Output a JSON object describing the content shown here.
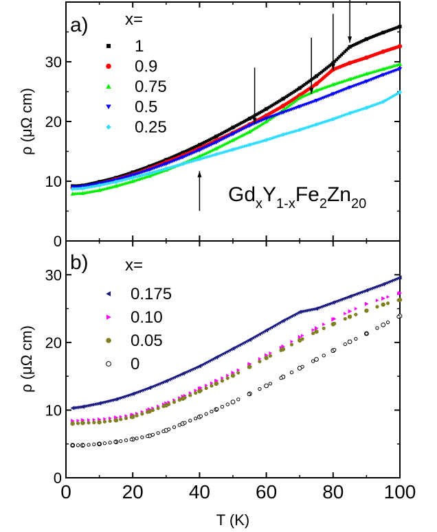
{
  "chart_data": [
    {
      "type": "scatter",
      "panel_label": "a)",
      "annotation": {
        "base": [
          "Gd",
          "Y",
          "Fe",
          "Zn"
        ],
        "subs": [
          "x",
          "1-x",
          "2",
          "20"
        ]
      },
      "xlabel": "",
      "ylabel": "ρ (μΩ cm)",
      "xlim": [
        0,
        100
      ],
      "ylim": [
        0,
        40
      ],
      "yticks": [
        0,
        10,
        20,
        30
      ],
      "grid": false,
      "legend": {
        "title": "x=",
        "position": "top-left"
      },
      "series": [
        {
          "name": "1",
          "color": "#000000",
          "marker": "square",
          "x": [
            2,
            5,
            10,
            15,
            20,
            25,
            30,
            35,
            40,
            45,
            50,
            55,
            60,
            65,
            70,
            75,
            80,
            85,
            90,
            95,
            100
          ],
          "y": [
            9.2,
            9.3,
            9.9,
            10.6,
            11.5,
            12.5,
            13.6,
            14.8,
            16.1,
            17.5,
            19.0,
            20.5,
            22.1,
            23.8,
            25.6,
            27.6,
            29.8,
            32.5,
            33.8,
            34.9,
            35.9
          ]
        },
        {
          "name": "0.9",
          "color": "#ff0000",
          "marker": "circle",
          "x": [
            2,
            5,
            10,
            15,
            20,
            25,
            30,
            35,
            40,
            45,
            50,
            55,
            60,
            65,
            70,
            75,
            80,
            85,
            90,
            95,
            100
          ],
          "y": [
            8.9,
            9.0,
            9.6,
            10.3,
            11.1,
            12.1,
            13.2,
            14.3,
            15.5,
            16.8,
            18.1,
            19.5,
            21.0,
            22.6,
            24.4,
            26.3,
            28.7,
            29.8,
            30.7,
            31.7,
            32.6
          ]
        },
        {
          "name": "0.75",
          "color": "#00ee00",
          "marker": "triangle-up",
          "x": [
            2,
            5,
            10,
            15,
            20,
            25,
            30,
            35,
            40,
            45,
            50,
            55,
            60,
            65,
            70,
            75,
            80,
            85,
            90,
            95,
            100
          ],
          "y": [
            7.9,
            8.0,
            8.5,
            9.2,
            10.0,
            10.9,
            11.9,
            13.0,
            14.2,
            15.5,
            16.9,
            18.3,
            20.0,
            21.9,
            24.0,
            25.2,
            26.2,
            27.1,
            28.0,
            28.8,
            29.6
          ]
        },
        {
          "name": "0.5",
          "color": "#0000ff",
          "marker": "triangle-down",
          "x": [
            2,
            5,
            10,
            15,
            20,
            25,
            30,
            35,
            40,
            45,
            50,
            55,
            60,
            65,
            70,
            75,
            80,
            85,
            90,
            95,
            100
          ],
          "y": [
            9.0,
            9.1,
            9.6,
            10.2,
            11.0,
            11.9,
            12.9,
            14.0,
            15.2,
            16.5,
            17.9,
            19.3,
            20.5,
            21.5,
            22.5,
            23.5,
            24.6,
            25.7,
            26.7,
            27.8,
            28.8
          ]
        },
        {
          "name": "0.25",
          "color": "#33ddff",
          "marker": "diamond",
          "x": [
            2,
            5,
            10,
            15,
            20,
            25,
            30,
            35,
            40,
            45,
            50,
            55,
            60,
            65,
            70,
            75,
            80,
            85,
            90,
            95,
            100
          ],
          "y": [
            8.7,
            8.8,
            9.3,
            9.9,
            10.6,
            11.3,
            12.1,
            12.9,
            13.7,
            14.5,
            15.3,
            16.1,
            16.9,
            17.8,
            18.6,
            19.5,
            20.4,
            21.4,
            22.3,
            23.3,
            24.9
          ]
        }
      ],
      "arrows": [
        {
          "x": 56.5,
          "y": 19.6,
          "direction": "down"
        },
        {
          "x": 73.5,
          "y": 24.6,
          "direction": "down"
        },
        {
          "x": 80.0,
          "y": 28.6,
          "direction": "down"
        },
        {
          "x": 85.0,
          "y": 33.2,
          "direction": "down"
        },
        {
          "x": 40.0,
          "y": 11.7,
          "direction": "up"
        }
      ]
    },
    {
      "type": "scatter",
      "panel_label": "b)",
      "xlabel": "T (K)",
      "ylabel": "ρ (μΩ cm)",
      "xlim": [
        0,
        100
      ],
      "ylim": [
        0,
        35
      ],
      "xticks": [
        0,
        20,
        40,
        60,
        80,
        100
      ],
      "yticks": [
        0,
        10,
        20,
        30
      ],
      "grid": false,
      "legend": {
        "title": "x=",
        "position": "top-left"
      },
      "series": [
        {
          "name": "0.175",
          "color": "#1a1a80",
          "marker": "triangle-left",
          "x": [
            2,
            5,
            10,
            15,
            20,
            25,
            30,
            35,
            40,
            45,
            50,
            55,
            60,
            65,
            70,
            75,
            80,
            85,
            90,
            95,
            100
          ],
          "y": [
            10.3,
            10.5,
            11.0,
            11.6,
            12.4,
            13.3,
            14.3,
            15.4,
            16.5,
            17.8,
            19.1,
            20.4,
            21.8,
            23.2,
            24.5,
            25.0,
            25.9,
            26.8,
            27.7,
            28.6,
            29.6
          ]
        },
        {
          "name": "0.10",
          "color": "#ff00ff",
          "marker": "triangle-right",
          "x": [
            2,
            5,
            10,
            15,
            20,
            25,
            30,
            35,
            40,
            45,
            50,
            55,
            60,
            65,
            70,
            75,
            80,
            85,
            90,
            95,
            100
          ],
          "y": [
            8.4,
            8.5,
            8.6,
            8.9,
            9.3,
            10.1,
            11.0,
            12.0,
            13.2,
            14.3,
            15.5,
            16.8,
            18.1,
            19.4,
            20.8,
            22.1,
            23.4,
            24.6,
            25.7,
            26.5,
            27.3
          ]
        },
        {
          "name": "0.05",
          "color": "#808020",
          "marker": "circle",
          "x": [
            2,
            5,
            10,
            15,
            20,
            25,
            30,
            35,
            40,
            45,
            50,
            55,
            60,
            65,
            70,
            75,
            80,
            85,
            90,
            95,
            100
          ],
          "y": [
            8.0,
            8.1,
            8.2,
            8.5,
            9.0,
            9.8,
            10.7,
            11.7,
            12.8,
            13.9,
            15.1,
            16.4,
            17.7,
            19.0,
            20.3,
            21.6,
            22.7,
            23.8,
            24.7,
            25.6,
            26.3
          ]
        },
        {
          "name": "0",
          "color": "#000000",
          "marker": "open-circle",
          "x": [
            2,
            5,
            10,
            15,
            20,
            25,
            30,
            35,
            40,
            45,
            50,
            55,
            60,
            65,
            70,
            75,
            80,
            85,
            90,
            95,
            100
          ],
          "y": [
            4.8,
            4.8,
            5.0,
            5.3,
            5.7,
            6.2,
            7.0,
            8.0,
            9.0,
            10.1,
            11.2,
            12.4,
            13.6,
            14.9,
            16.2,
            17.5,
            18.8,
            20.1,
            21.3,
            22.6,
            23.9
          ]
        }
      ]
    }
  ]
}
